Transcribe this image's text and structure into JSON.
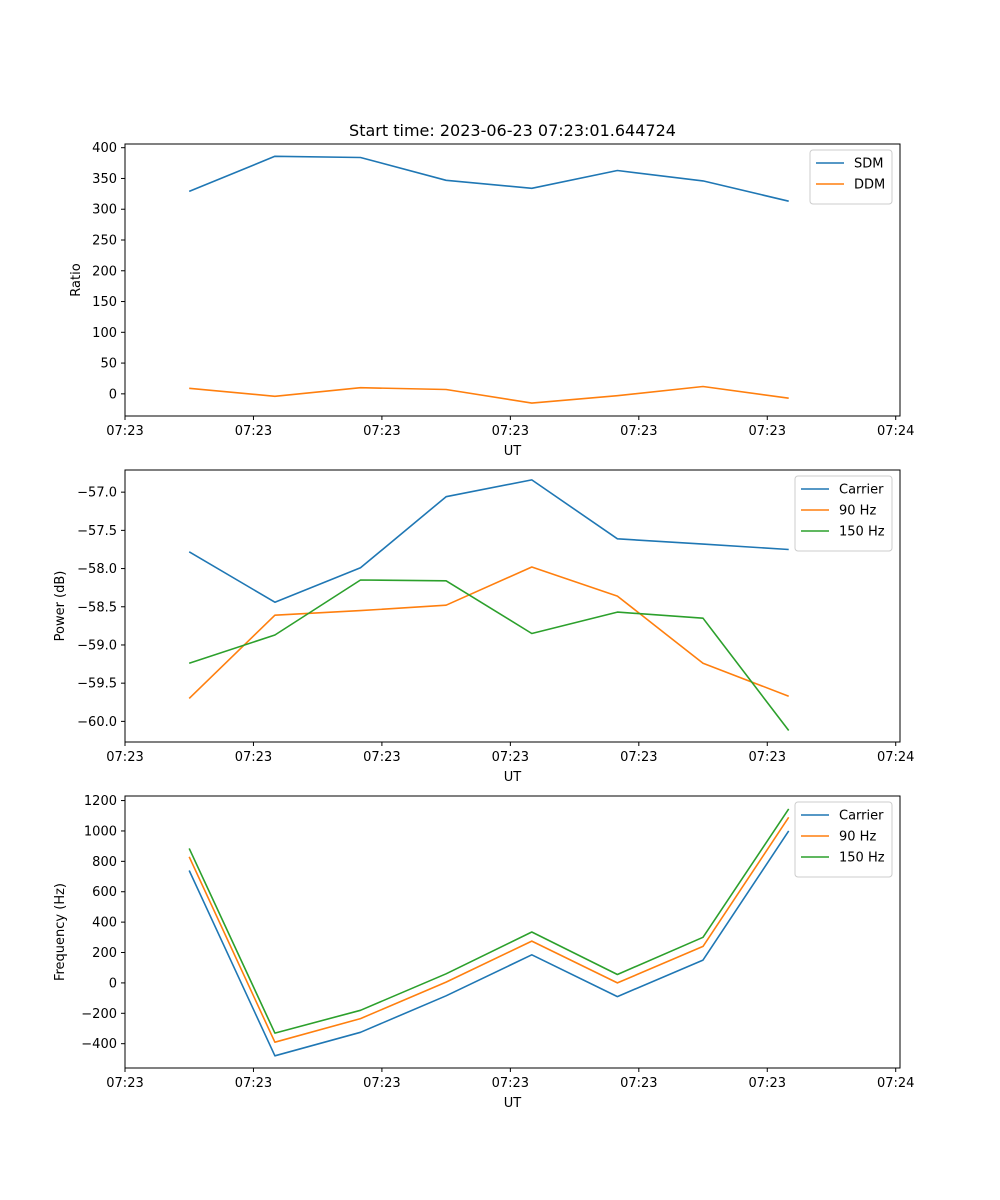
{
  "figure": {
    "title": "Start time: 2023-06-23 07:23:01.644724"
  },
  "colors": {
    "blue": "#1f77b4",
    "orange": "#ff7f0e",
    "green": "#2ca02c"
  },
  "chart_data": [
    {
      "type": "line",
      "title": "Start time: 2023-06-23 07:23:01.644724",
      "xlabel": "UT",
      "ylabel": "Ratio",
      "x": [
        0,
        1,
        2,
        3,
        4,
        5,
        6,
        7
      ],
      "xlim": [
        -0.75,
        8.3
      ],
      "x_ticks": [
        -0.75,
        0.75,
        2.25,
        3.75,
        5.25,
        6.75,
        8.25
      ],
      "x_tick_labels": [
        "07:23",
        "07:23",
        "07:23",
        "07:23",
        "07:23",
        "07:23",
        "07:24"
      ],
      "ylim": [
        -36,
        406
      ],
      "y_ticks": [
        0,
        50,
        100,
        150,
        200,
        250,
        300,
        350,
        400
      ],
      "y_tick_labels": [
        "0",
        "50",
        "100",
        "150",
        "200",
        "250",
        "300",
        "350",
        "400"
      ],
      "legend_position": "top-right",
      "series": [
        {
          "name": "SDM",
          "color": "#1f77b4",
          "values": [
            329,
            386,
            384,
            347,
            334,
            363,
            346,
            313
          ]
        },
        {
          "name": "DDM",
          "color": "#ff7f0e",
          "values": [
            9,
            -4,
            10,
            7,
            -15,
            -3,
            12,
            -7
          ]
        }
      ]
    },
    {
      "type": "line",
      "xlabel": "UT",
      "ylabel": "Power (dB)",
      "x": [
        0,
        1,
        2,
        3,
        4,
        5,
        6,
        7
      ],
      "xlim": [
        -0.75,
        8.3
      ],
      "x_ticks": [
        -0.75,
        0.75,
        2.25,
        3.75,
        5.25,
        6.75,
        8.25
      ],
      "x_tick_labels": [
        "07:23",
        "07:23",
        "07:23",
        "07:23",
        "07:23",
        "07:23",
        "07:24"
      ],
      "ylim": [
        -60.27,
        -56.71
      ],
      "y_ticks": [
        -60.0,
        -59.5,
        -59.0,
        -58.5,
        -58.0,
        -57.5,
        -57.0
      ],
      "y_tick_labels": [
        "−60.0",
        "−59.5",
        "−59.0",
        "−58.5",
        "−58.0",
        "−57.5",
        "−57.0"
      ],
      "legend_position": "top-right",
      "series": [
        {
          "name": "Carrier",
          "color": "#1f77b4",
          "values": [
            -57.78,
            -58.44,
            -57.99,
            -57.06,
            -56.84,
            -57.61,
            -57.68,
            -57.75
          ]
        },
        {
          "name": "90 Hz",
          "color": "#ff7f0e",
          "values": [
            -59.7,
            -58.61,
            -58.55,
            -58.48,
            -57.98,
            -58.36,
            -59.24,
            -59.67
          ]
        },
        {
          "name": "150 Hz",
          "color": "#2ca02c",
          "values": [
            -59.24,
            -58.87,
            -58.15,
            -58.16,
            -58.85,
            -58.57,
            -58.65,
            -60.12
          ]
        }
      ]
    },
    {
      "type": "line",
      "xlabel": "UT",
      "ylabel": "Frequency (Hz)",
      "x": [
        0,
        1,
        2,
        3,
        4,
        5,
        6,
        7
      ],
      "xlim": [
        -0.75,
        8.3
      ],
      "x_ticks": [
        -0.75,
        0.75,
        2.25,
        3.75,
        5.25,
        6.75,
        8.25
      ],
      "x_tick_labels": [
        "07:23",
        "07:23",
        "07:23",
        "07:23",
        "07:23",
        "07:23",
        "07:24"
      ],
      "ylim": [
        -560,
        1230
      ],
      "y_ticks": [
        -400,
        -200,
        0,
        200,
        400,
        600,
        800,
        1000,
        1200
      ],
      "y_tick_labels": [
        "−400",
        "−200",
        "0",
        "200",
        "400",
        "600",
        "800",
        "1000",
        "1200"
      ],
      "legend_position": "top-right",
      "series": [
        {
          "name": "Carrier",
          "color": "#1f77b4",
          "values": [
            740,
            -480,
            -325,
            -85,
            185,
            -90,
            150,
            1000
          ]
        },
        {
          "name": "90 Hz",
          "color": "#ff7f0e",
          "values": [
            830,
            -390,
            -235,
            5,
            275,
            0,
            240,
            1090
          ]
        },
        {
          "name": "150 Hz",
          "color": "#2ca02c",
          "values": [
            885,
            -330,
            -180,
            60,
            335,
            55,
            300,
            1145
          ]
        }
      ]
    }
  ]
}
